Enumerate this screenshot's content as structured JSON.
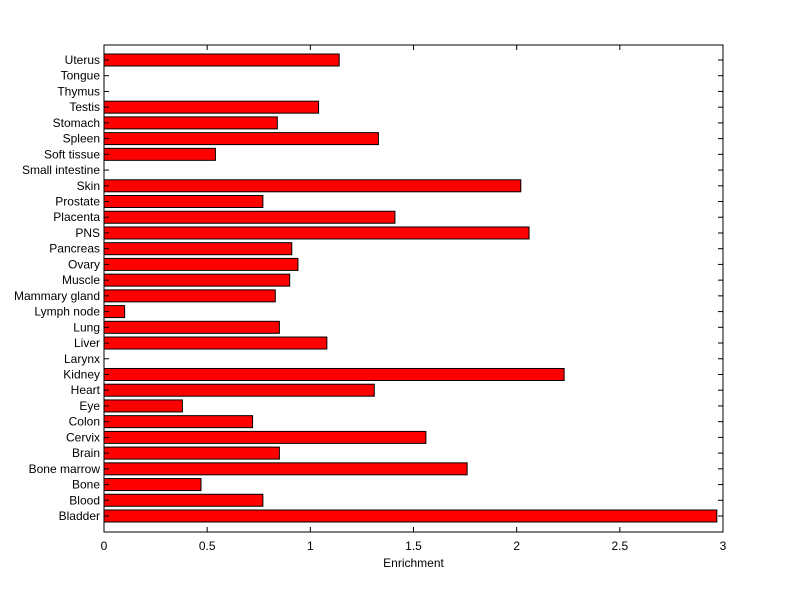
{
  "chart_data": {
    "type": "bar",
    "orientation": "horizontal",
    "xlabel": "Enrichment",
    "xlim": [
      0,
      3
    ],
    "xticks": [
      "0",
      "0.5",
      "1",
      "1.5",
      "2",
      "2.5",
      "3"
    ],
    "bar_color": "#ff0000",
    "categories": [
      "Uterus",
      "Tongue",
      "Thymus",
      "Testis",
      "Stomach",
      "Spleen",
      "Soft tissue",
      "Small intestine",
      "Skin",
      "Prostate",
      "Placenta",
      "PNS",
      "Pancreas",
      "Ovary",
      "Muscle",
      "Mammary gland",
      "Lymph node",
      "Lung",
      "Liver",
      "Larynx",
      "Kidney",
      "Heart",
      "Eye",
      "Colon",
      "Cervix",
      "Brain",
      "Bone marrow",
      "Bone",
      "Blood",
      "Bladder"
    ],
    "values": [
      1.14,
      0,
      0,
      1.04,
      0.84,
      1.33,
      0.54,
      0,
      2.02,
      0.77,
      1.41,
      2.06,
      0.91,
      0.94,
      0.9,
      0.83,
      0.1,
      0.85,
      1.08,
      0,
      2.23,
      1.31,
      0.38,
      0.72,
      1.56,
      0.85,
      1.76,
      0.47,
      0.77,
      2.97
    ]
  }
}
